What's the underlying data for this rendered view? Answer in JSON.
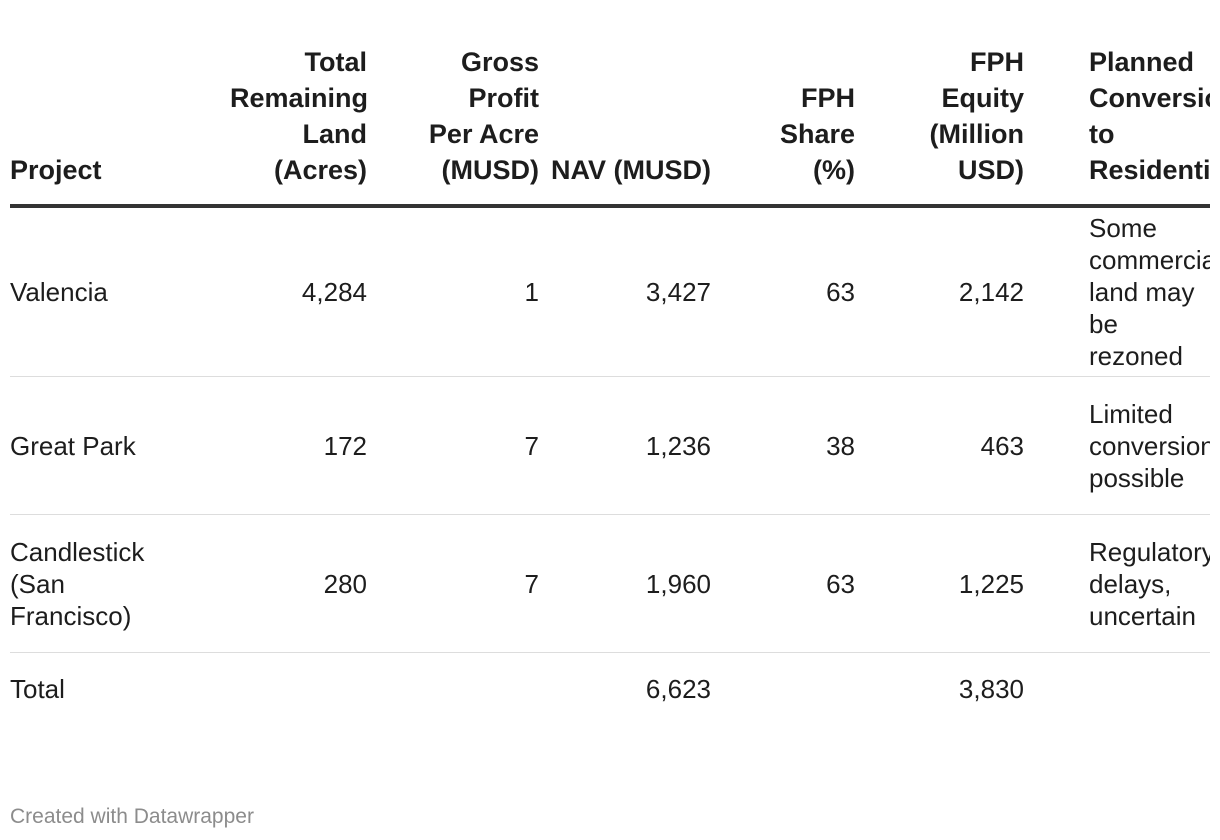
{
  "table": {
    "headers": {
      "project": "Project",
      "land": "Total Remaining Land (Acres)",
      "gross_profit": "Gross Profit Per Acre (MUSD)",
      "nav": "NAV (MUSD)",
      "share": "FPH Share (%)",
      "equity": "FPH Equity (Million USD)",
      "conversion": "Planned Conversion to Residential"
    },
    "rows": [
      {
        "project": "Valencia",
        "land": "4,284",
        "gross_profit": "1",
        "nav": "3,427",
        "share": "63",
        "equity": "2,142",
        "conversion": "Some commercial land may be rezoned"
      },
      {
        "project": "Great Park",
        "land": "172",
        "gross_profit": "7",
        "nav": "1,236",
        "share": "38",
        "equity": "463",
        "conversion": "Limited conversion possible"
      },
      {
        "project": "Candlestick (San Francisco)",
        "land": "280",
        "gross_profit": "7",
        "nav": "1,960",
        "share": "63",
        "equity": "1,225",
        "conversion": "Regulatory delays, uncertain"
      }
    ],
    "total": {
      "label": "Total",
      "nav": "6,623",
      "equity": "3,830"
    }
  },
  "footer": {
    "credit": "Created with Datawrapper"
  }
}
